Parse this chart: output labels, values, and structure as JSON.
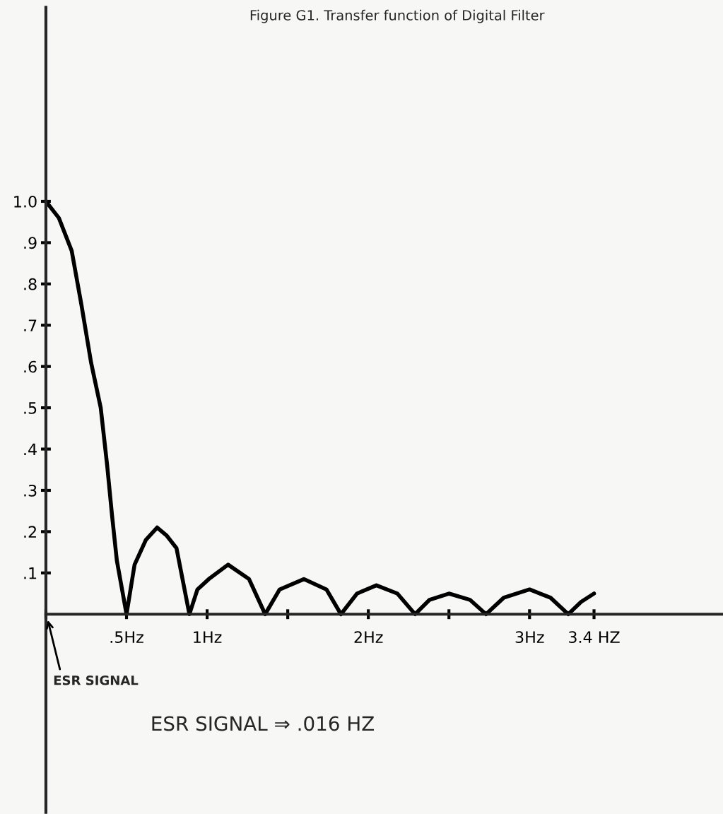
{
  "chart_data": {
    "type": "line",
    "title": "Figure G1. Transfer function of Digital Filter",
    "xlabel": "ESR SIGNAL ⇒ .016 HZ",
    "annotations": [
      "ESR SIGNAL"
    ],
    "x": [
      0,
      0.08,
      0.16,
      0.22,
      0.28,
      0.34,
      0.38,
      0.41,
      0.44,
      0.5,
      0.55,
      0.62,
      0.69,
      0.75,
      0.81,
      0.89,
      0.94,
      1.01,
      1.13,
      1.26,
      1.36,
      1.45,
      1.6,
      1.74,
      1.83,
      1.93,
      2.05,
      2.18,
      2.29,
      2.38,
      2.5,
      2.63,
      2.73,
      2.84,
      3.0,
      3.13,
      3.24,
      3.32,
      3.4
    ],
    "series": [
      {
        "color": "#000000",
        "values": [
          1.0,
          0.96,
          0.88,
          0.75,
          0.61,
          0.5,
          0.36,
          0.24,
          0.13,
          0.0,
          0.12,
          0.18,
          0.21,
          0.19,
          0.16,
          0.0,
          0.06,
          0.085,
          0.12,
          0.085,
          0.0,
          0.06,
          0.085,
          0.06,
          0.0,
          0.05,
          0.07,
          0.05,
          0.0,
          0.035,
          0.05,
          0.035,
          0.0,
          0.04,
          0.06,
          0.04,
          0.0,
          0.03,
          0.05
        ]
      }
    ],
    "xlim": [
      0,
      4.2
    ],
    "ylim": [
      -0.48,
      1.47
    ],
    "xticks": [
      {
        "value": 0,
        "label": null
      },
      {
        "value": 0.5,
        "label": ".5Hz"
      },
      {
        "value": 1,
        "label": "1Hz"
      },
      {
        "value": 1.5,
        "label": null
      },
      {
        "value": 2,
        "label": "2Hz"
      },
      {
        "value": 2.5,
        "label": null
      },
      {
        "value": 3,
        "label": "3Hz"
      },
      {
        "value": 3.4,
        "label": "3.4 HZ"
      }
    ],
    "yticks": [
      {
        "value": 0.1,
        "label": ".1"
      },
      {
        "value": 0.2,
        "label": ".2"
      },
      {
        "value": 0.3,
        "label": ".3"
      },
      {
        "value": 0.4,
        "label": ".4"
      },
      {
        "value": 0.5,
        "label": ".5"
      },
      {
        "value": 0.6,
        "label": ".6"
      },
      {
        "value": 0.7,
        "label": ".7"
      },
      {
        "value": 0.8,
        "label": ".8"
      },
      {
        "value": 0.9,
        "label": ".9"
      },
      {
        "value": 1.0,
        "label": "1.0"
      }
    ],
    "grid": false,
    "legend": false,
    "marker": "none",
    "line_style": "solid"
  }
}
